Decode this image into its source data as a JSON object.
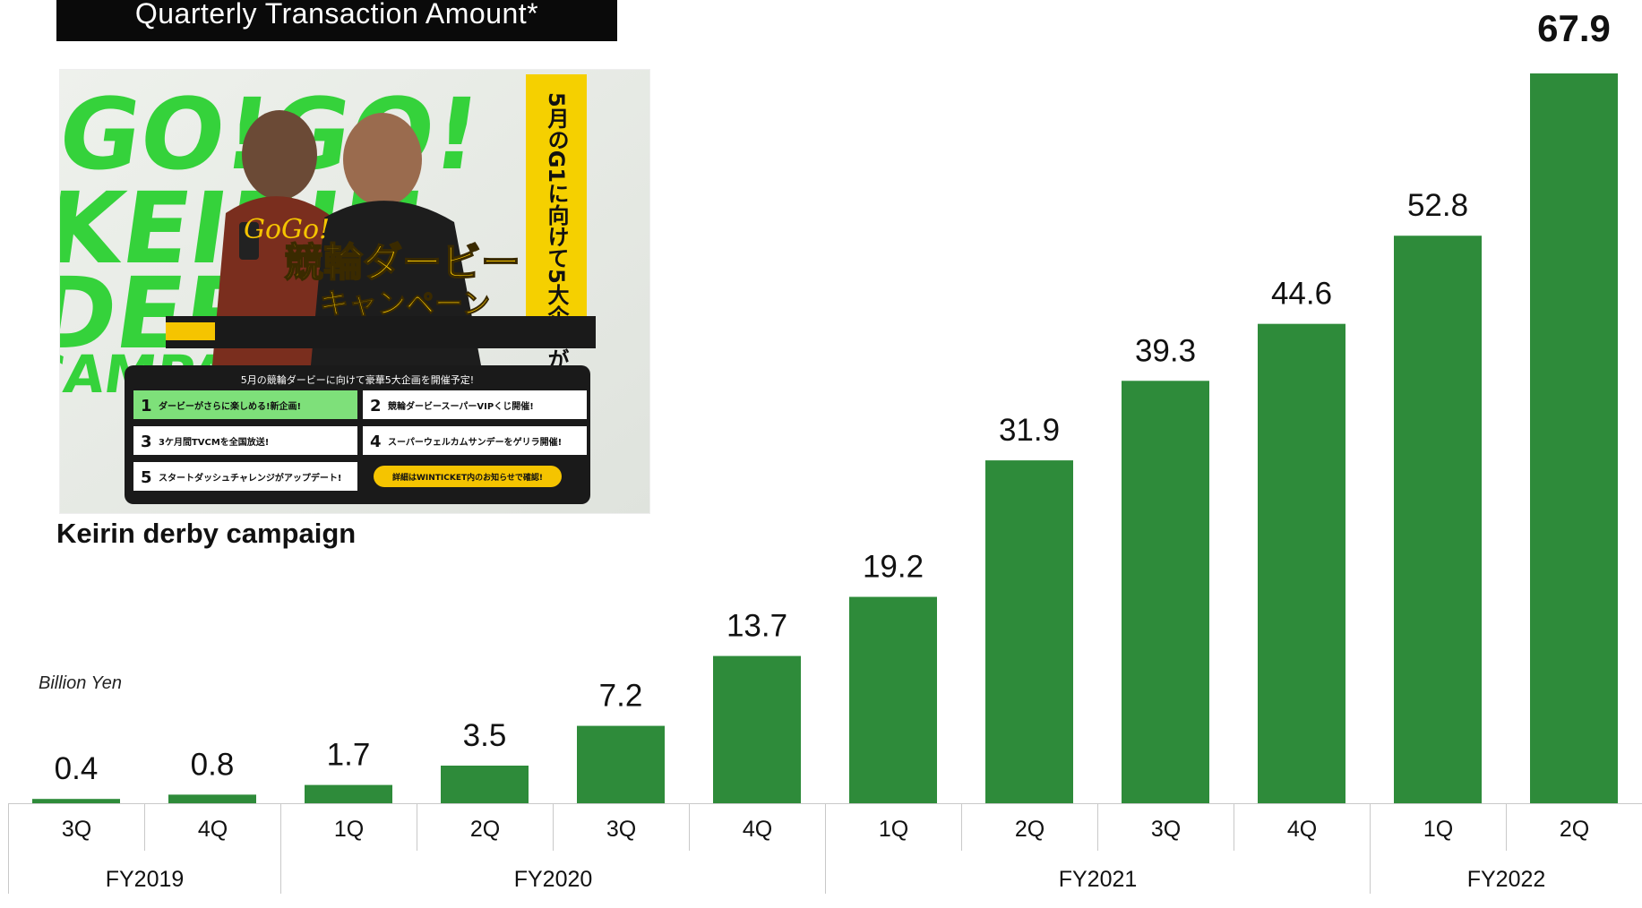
{
  "header": {
    "title": "Quarterly Transaction Amount*"
  },
  "promo": {
    "caption": "Keirin derby campaign",
    "brand_text": "GO! GO! KEIRIN DERBY CAMPAIGN!!!!",
    "logo_script": "GoGo!",
    "logo_main": "競輪ダービー",
    "logo_sub": "キャンペーン",
    "vertical_banner": "5月のG1に向けて5大企画が動き出す!",
    "panel_title": "5月の競輪ダービーに向けて豪華5大企画を開催予定!",
    "items": [
      {
        "num": "1",
        "text": "ダービーがさらに楽しめる!新企画!"
      },
      {
        "num": "2",
        "text": "競輪ダービースーパーVIPくじ開催!"
      },
      {
        "num": "3",
        "text": "3ケ月間TVCMを全国放送!"
      },
      {
        "num": "4",
        "text": "スーパーウェルカムサンデーをゲリラ開催!"
      },
      {
        "num": "5",
        "text": "スタートダッシュチャレンジがアップデート!"
      }
    ],
    "cta": "詳細はWINTICKET内のお知らせで確認!",
    "colors": {
      "green": "#2fd13a",
      "yellow": "#f5c400",
      "dark": "#1a1a1a"
    }
  },
  "chart_data": {
    "type": "bar",
    "title": "Quarterly Transaction Amount*",
    "ylabel": "Billion Yen",
    "categories": [
      "3Q",
      "4Q",
      "1Q",
      "2Q",
      "3Q",
      "4Q",
      "1Q",
      "2Q",
      "3Q",
      "4Q",
      "1Q",
      "2Q"
    ],
    "values": [
      0.4,
      0.8,
      1.7,
      3.5,
      7.2,
      13.7,
      19.2,
      31.9,
      39.3,
      44.6,
      52.8,
      67.9
    ],
    "value_labels": [
      "0.4",
      "0.8",
      "1.7",
      "3.5",
      "7.2",
      "13.7",
      "19.2",
      "31.9",
      "39.3",
      "44.6",
      "52.8",
      "67.9"
    ],
    "groups": [
      {
        "label": "FY2019",
        "span": 2
      },
      {
        "label": "FY2020",
        "span": 4
      },
      {
        "label": "FY2021",
        "span": 4
      },
      {
        "label": "FY2022",
        "span": 2
      }
    ],
    "ylim": [
      0,
      67.9
    ],
    "bar_color": "#2e8b3a",
    "grid": false
  }
}
